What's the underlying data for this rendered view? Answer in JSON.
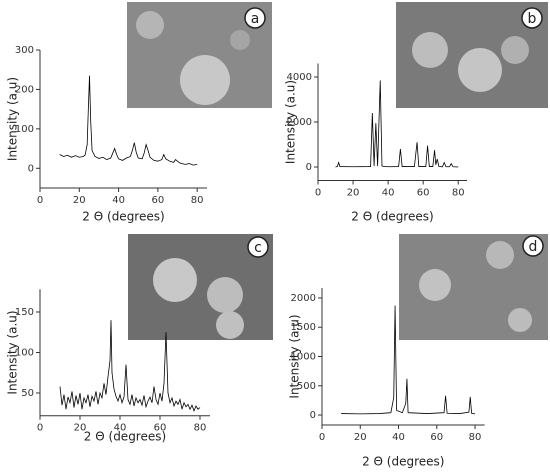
{
  "chart_data": [
    {
      "type": "line",
      "panel_label": "a",
      "xlabel": "2 Θ (degrees)",
      "ylabel": "Intensity (a.u)",
      "color": "#000000",
      "x": [
        10,
        12,
        14,
        16,
        18,
        20,
        22,
        23,
        24,
        24.6,
        25.2,
        25.8,
        26.5,
        28,
        30,
        32,
        34,
        36,
        37,
        38,
        39,
        40,
        42,
        44,
        46,
        47,
        48,
        49,
        50,
        52,
        53,
        54,
        55,
        56,
        58,
        60,
        62,
        63,
        64,
        66,
        68,
        69,
        70,
        71,
        72,
        74,
        76,
        78,
        80
      ],
      "values": [
        35,
        30,
        33,
        28,
        32,
        28,
        30,
        34,
        60,
        150,
        235,
        120,
        45,
        30,
        25,
        28,
        22,
        26,
        38,
        50,
        35,
        24,
        20,
        26,
        30,
        45,
        65,
        40,
        26,
        24,
        38,
        60,
        45,
        28,
        20,
        18,
        22,
        35,
        24,
        18,
        15,
        22,
        18,
        14,
        12,
        10,
        12,
        8,
        10
      ],
      "xlim": [
        0,
        85
      ],
      "ylim": [
        -50,
        300
      ],
      "xticks": [
        0,
        20,
        40,
        60,
        80
      ],
      "yticks": [
        0,
        100,
        200,
        300
      ]
    },
    {
      "type": "line",
      "panel_label": "b",
      "xlabel": "2 Θ (degrees)",
      "ylabel": "Intensity (a.u)",
      "color": "#000000",
      "x": [
        10,
        11,
        11.8,
        12.5,
        20,
        30,
        31,
        32,
        33,
        34,
        35.5,
        36.5,
        40,
        46,
        47,
        48,
        55,
        56.5,
        57.5,
        61.5,
        62.5,
        63.5,
        65.5,
        66.5,
        67.2,
        68,
        69,
        71,
        72,
        73,
        75,
        76,
        77,
        80
      ],
      "values": [
        0,
        20,
        200,
        20,
        10,
        20,
        2400,
        40,
        1950,
        40,
        3850,
        40,
        10,
        20,
        800,
        20,
        20,
        1100,
        20,
        20,
        950,
        20,
        20,
        750,
        100,
        350,
        20,
        10,
        200,
        10,
        10,
        150,
        10,
        0
      ],
      "xlim": [
        0,
        85
      ],
      "ylim": [
        -600,
        4600
      ],
      "xticks": [
        0,
        20,
        40,
        60,
        80
      ],
      "yticks": [
        0,
        2000,
        4000
      ]
    },
    {
      "type": "line",
      "panel_label": "c",
      "xlabel": "2 Θ (degrees)",
      "ylabel": "Intensity (a.u)",
      "color": "#000000",
      "x": [
        10,
        11,
        12,
        13,
        14,
        15,
        16,
        17,
        18,
        19,
        20,
        21,
        22,
        23,
        24,
        25,
        26,
        27,
        28,
        29,
        30,
        31,
        32,
        33,
        34,
        35,
        35.5,
        36,
        37,
        38,
        39,
        40,
        41,
        42,
        43,
        44,
        45,
        46,
        47,
        48,
        49,
        50,
        51,
        52,
        53,
        54,
        55,
        56,
        57,
        58,
        59,
        60,
        61,
        62,
        63,
        64,
        65,
        66,
        67,
        68,
        69,
        70,
        71,
        72,
        73,
        74,
        75,
        76,
        77,
        78,
        79,
        80
      ],
      "values": [
        58,
        35,
        48,
        30,
        45,
        38,
        52,
        32,
        47,
        36,
        50,
        30,
        44,
        38,
        48,
        33,
        46,
        40,
        52,
        36,
        50,
        44,
        62,
        48,
        70,
        90,
        140,
        75,
        55,
        46,
        40,
        48,
        38,
        45,
        85,
        42,
        36,
        48,
        34,
        44,
        38,
        42,
        35,
        47,
        33,
        40,
        45,
        38,
        58,
        42,
        36,
        50,
        40,
        62,
        125,
        50,
        38,
        44,
        34,
        40,
        36,
        42,
        30,
        38,
        33,
        36,
        30,
        35,
        28,
        34,
        30,
        32
      ],
      "xlim": [
        0,
        85
      ],
      "ylim": [
        22,
        178
      ],
      "xticks": [
        0,
        20,
        40,
        60,
        80
      ],
      "yticks": [
        50,
        100,
        150
      ]
    },
    {
      "type": "line",
      "panel_label": "d",
      "xlabel": "2 Θ (degrees)",
      "ylabel": "Intensity (a.u)",
      "color": "#000000",
      "x": [
        10,
        20,
        30,
        36,
        37.5,
        38.2,
        39,
        42,
        43.8,
        44.4,
        45,
        55,
        63.8,
        64.6,
        65.4,
        72,
        76.8,
        77.5,
        78.2,
        80
      ],
      "values": [
        25,
        20,
        25,
        40,
        300,
        1870,
        80,
        40,
        200,
        620,
        40,
        25,
        40,
        330,
        30,
        25,
        50,
        310,
        30,
        20
      ],
      "xlim": [
        0,
        85
      ],
      "ylim": [
        -170,
        2170
      ],
      "xticks": [
        0,
        20,
        40,
        60,
        80
      ],
      "yticks": [
        0,
        500,
        1000,
        1500,
        2000
      ]
    }
  ]
}
